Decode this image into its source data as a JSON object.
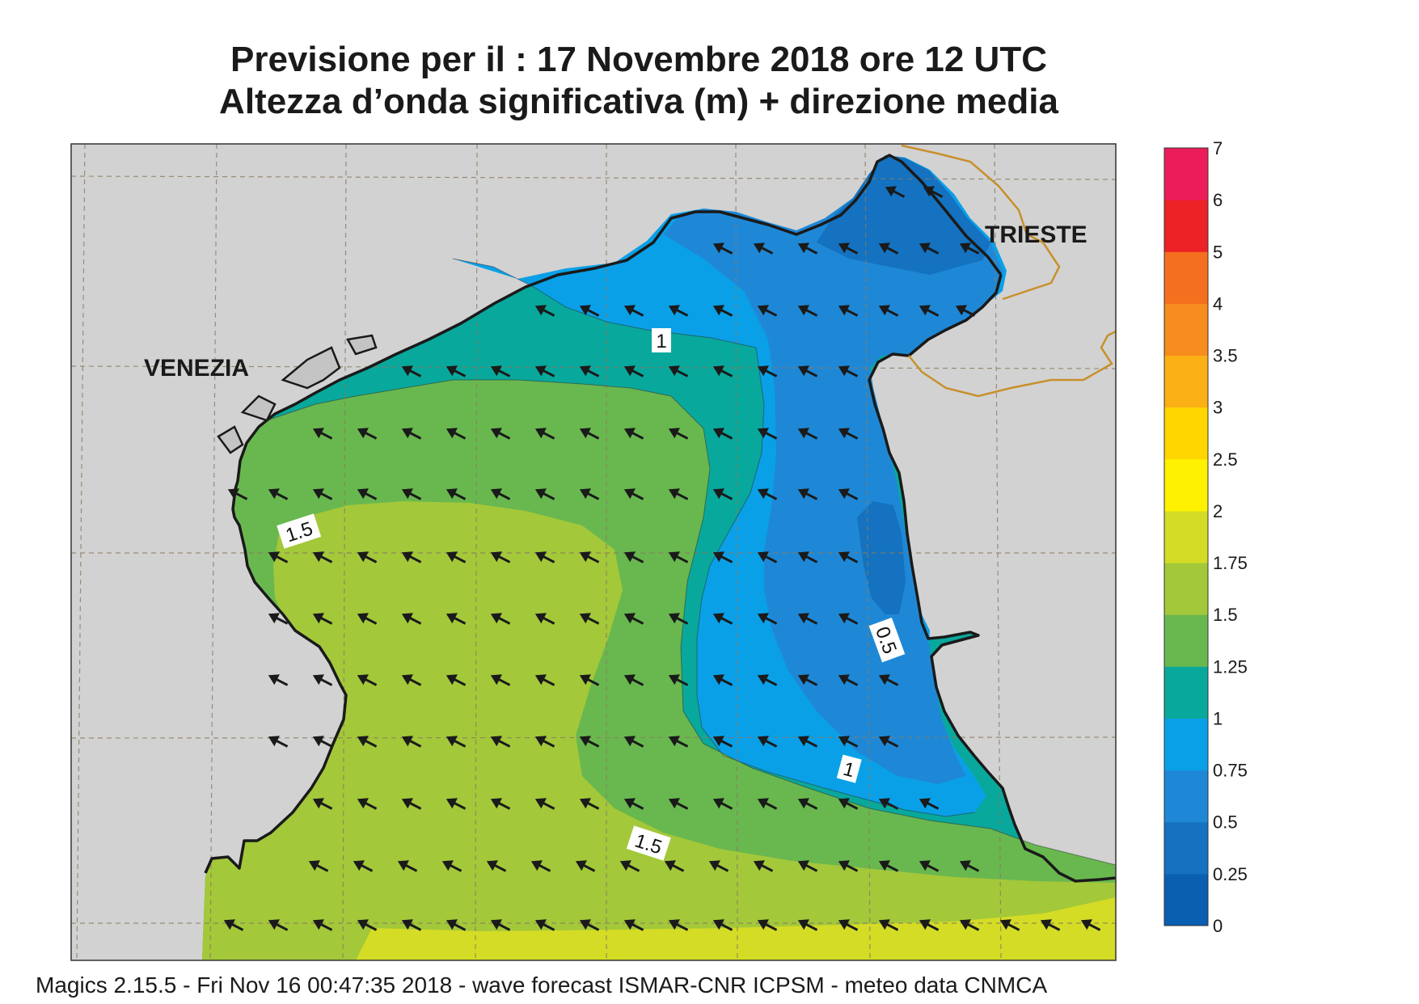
{
  "title": {
    "line1": "Previsione per il  :  17 Novembre  2018   ore 12 UTC",
    "line2": "Altezza d’onda significativa (m) + direzione media"
  },
  "footer": "Magics 2.15.5 - Fri Nov 16 00:47:35 2018 - wave forecast  ISMAR-CNR  ICPSM - meteo data   CNMCA",
  "cities": [
    {
      "name": "VENEZIA"
    },
    {
      "name": "TRIESTE"
    }
  ],
  "contour_labels": [
    {
      "text": "1"
    },
    {
      "text": "1.5"
    },
    {
      "text": "0.5"
    },
    {
      "text": "1"
    },
    {
      "text": "1.5"
    }
  ],
  "legend": {
    "levels": [
      "0",
      "0.25",
      "0.5",
      "0.75",
      "1",
      "1.25",
      "1.5",
      "1.75",
      "2",
      "2.5",
      "3",
      "3.5",
      "4",
      "5",
      "6",
      "7"
    ],
    "colors": [
      "#0a5fb0",
      "#1472c0",
      "#1f88d6",
      "#0aa0e8",
      "#09a89c",
      "#69b84f",
      "#a3c83a",
      "#d4dc26",
      "#fff200",
      "#ffd600",
      "#fbb116",
      "#f78c1f",
      "#f4701f",
      "#ec2227",
      "#ec1c5a"
    ]
  },
  "colors": {
    "land": "#d2d2d2",
    "coast": "#1a1a1a",
    "border": "#c8902c",
    "grid": "#8a7a60"
  }
}
